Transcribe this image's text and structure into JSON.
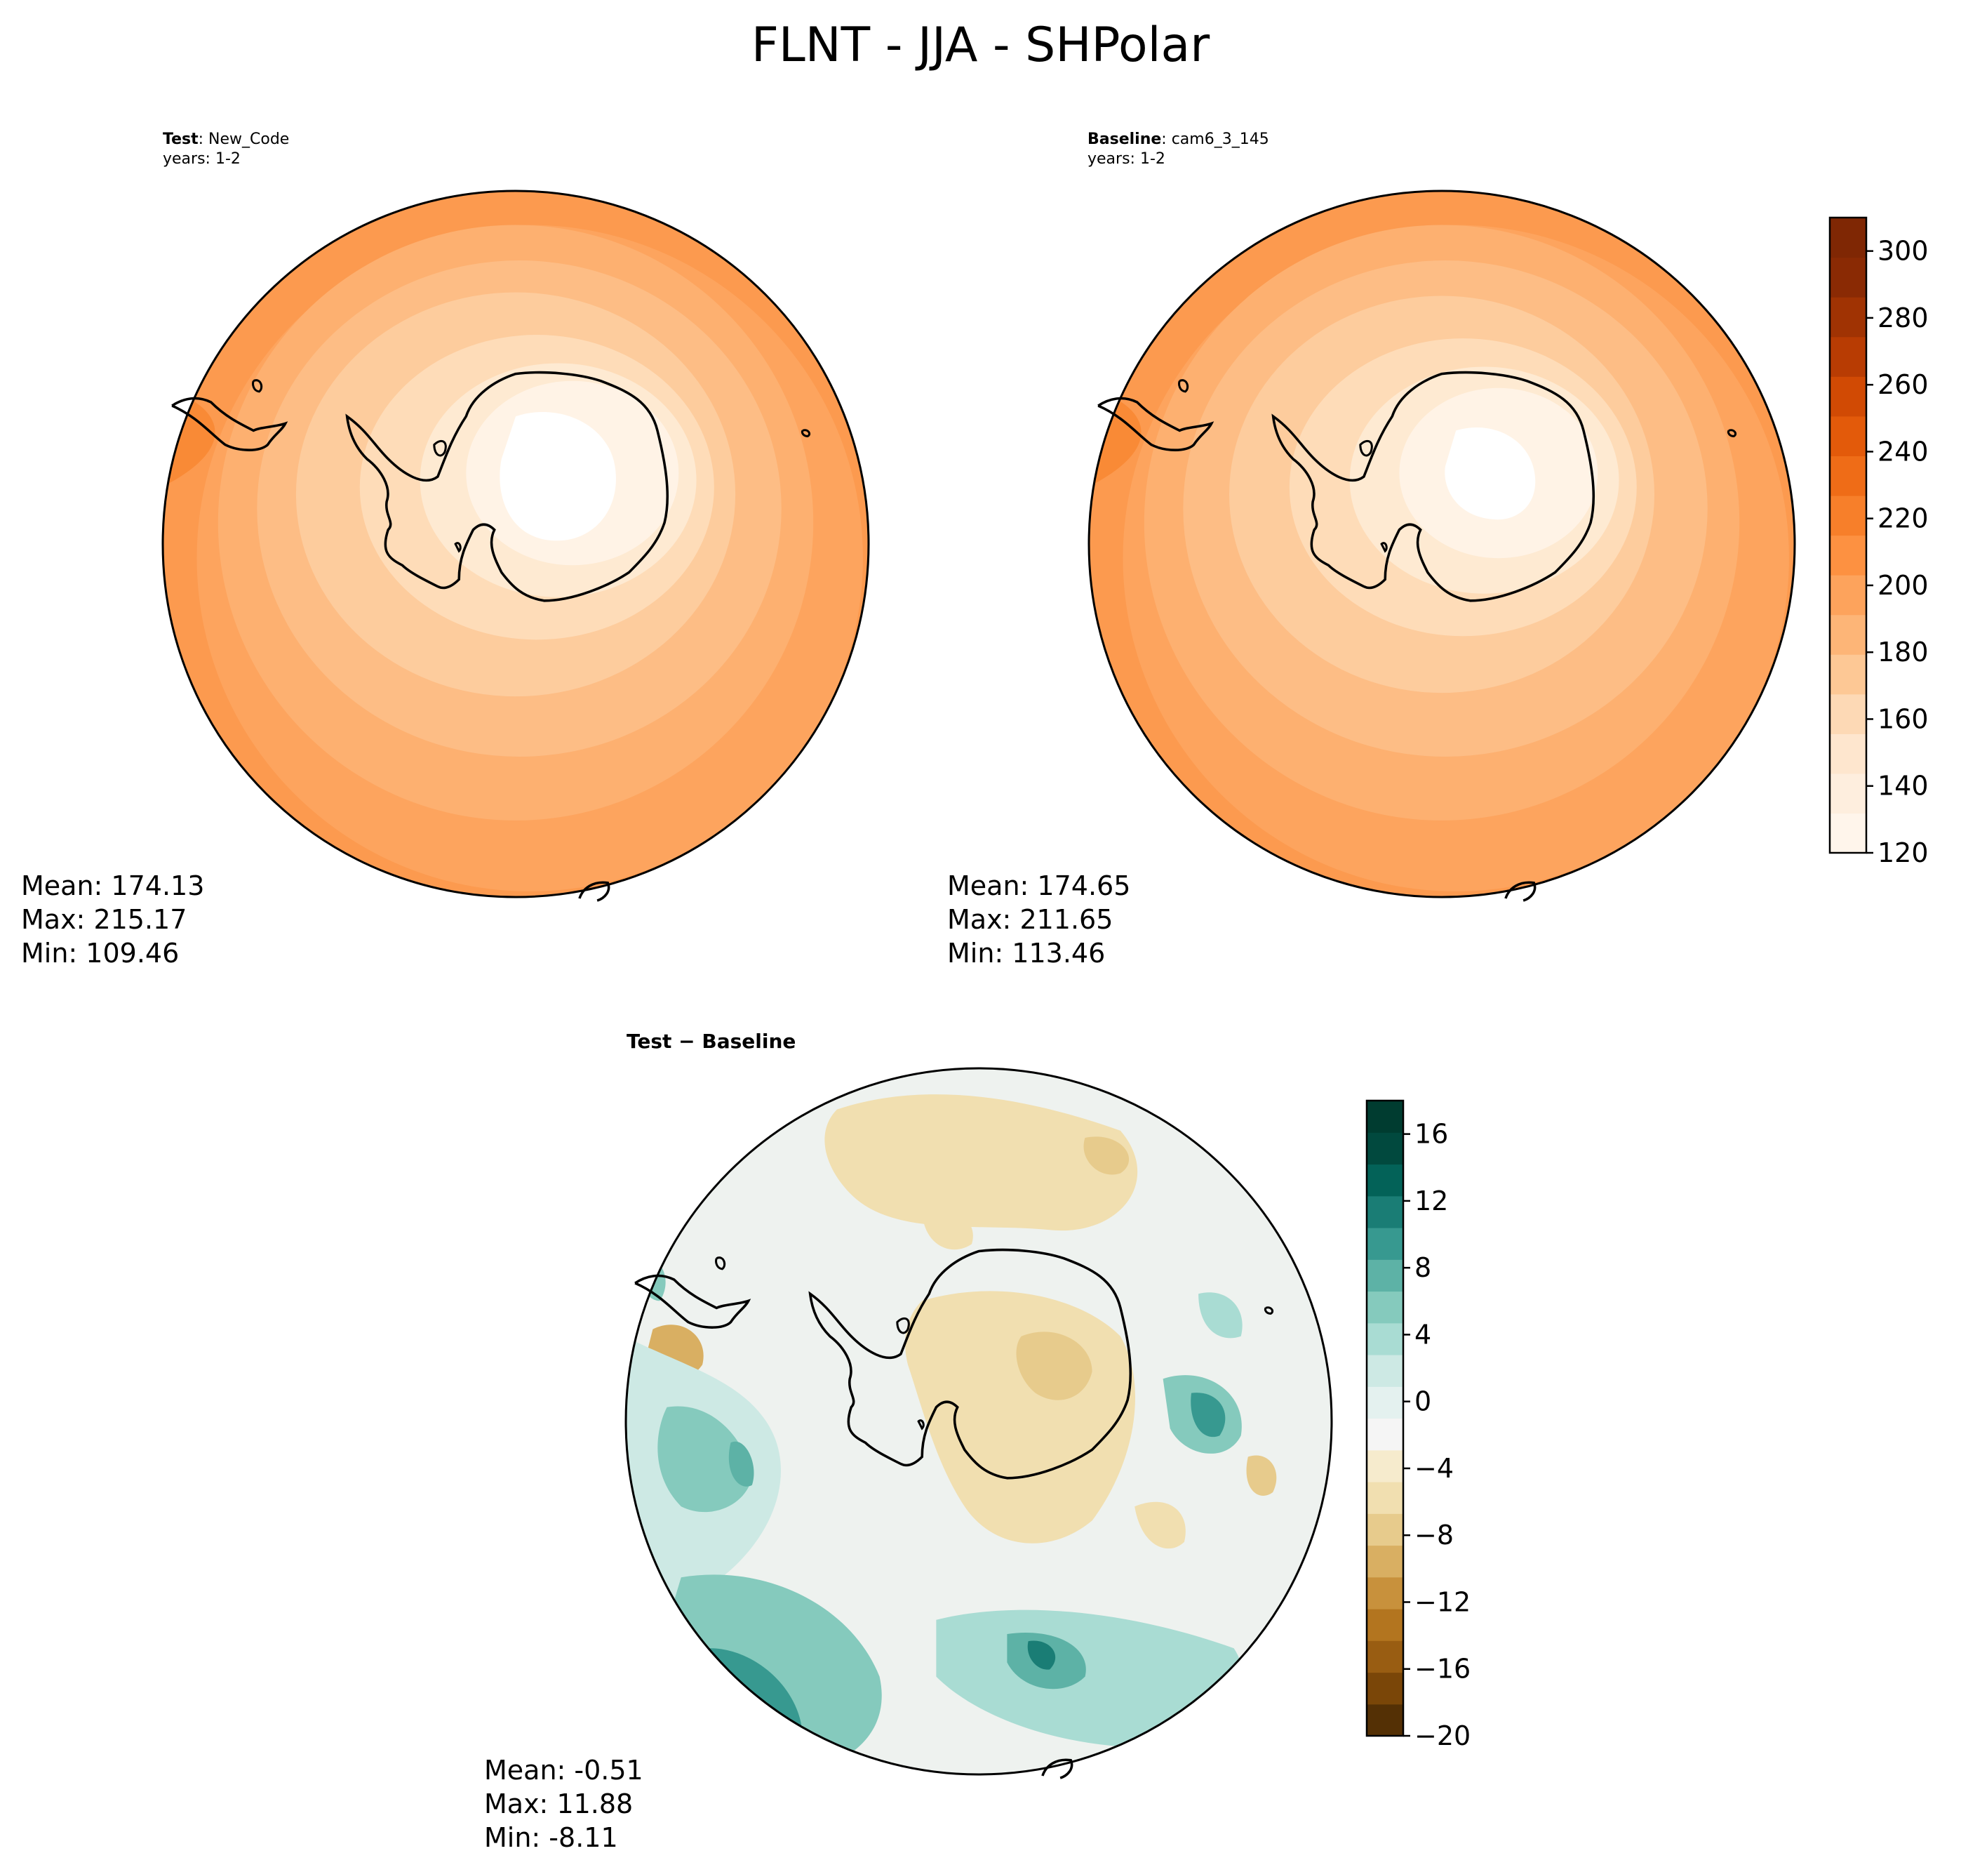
{
  "figure": {
    "title": "FLNT - JJA - SHPolar"
  },
  "panels": {
    "test": {
      "label_bold": "Test",
      "label_rest": ": New_Code",
      "years": "years: 1-2",
      "mean": "Mean: 174.13",
      "max": "Max: 215.17",
      "min": "Min: 109.46"
    },
    "baseline": {
      "label_bold": "Baseline",
      "label_rest": ": cam6_3_145",
      "years": "years: 1-2",
      "mean": "Mean: 174.65",
      "max": "Max: 211.65",
      "min": "Min: 113.46"
    },
    "diff": {
      "label": "Test − Baseline",
      "mean": "Mean: -0.51",
      "max": "Max: 11.88",
      "min": "Min: -8.11"
    }
  },
  "colors": {
    "main_cmap": [
      "#fff5eb",
      "#feeede",
      "#fee6ce",
      "#fdd9b5",
      "#fdc895",
      "#fdb577",
      "#fda35c",
      "#fd9141",
      "#f77f2a",
      "#ef6c17",
      "#e35a0a",
      "#d14a04",
      "#b83c03",
      "#a03303",
      "#8a2a04",
      "#7f2704"
    ],
    "diff_cmap_neg": [
      "#543005",
      "#7a4608",
      "#995d12",
      "#b3751f",
      "#c8913c",
      "#d9af62",
      "#e7cb8c",
      "#f1dfb0",
      "#f6ebcd"
    ],
    "diff_cmap_pos": [
      "#f5f5f5",
      "#e4f1ef",
      "#cde9e4",
      "#a9dcd3",
      "#85cabd",
      "#5db2a6",
      "#379990",
      "#1a7d75",
      "#036258",
      "#01493e",
      "#003c30"
    ]
  },
  "chart_data": [
    {
      "type": "heatmap",
      "name": "test-map",
      "projection": "south-polar-stereographic",
      "variable": "FLNT",
      "stats": {
        "mean": 174.13,
        "max": 215.17,
        "min": 109.46
      },
      "colorbar": {
        "vmin": 120,
        "vmax": 310,
        "ticks": [
          120,
          140,
          160,
          180,
          200,
          220,
          240,
          260,
          280,
          300
        ]
      }
    },
    {
      "type": "heatmap",
      "name": "baseline-map",
      "projection": "south-polar-stereographic",
      "variable": "FLNT",
      "stats": {
        "mean": 174.65,
        "max": 211.65,
        "min": 113.46
      },
      "colorbar": {
        "vmin": 120,
        "vmax": 310,
        "ticks": [
          120,
          140,
          160,
          180,
          200,
          220,
          240,
          260,
          280,
          300
        ],
        "tick_labels": [
          "120",
          "140",
          "160",
          "180",
          "200",
          "220",
          "240",
          "260",
          "280",
          "300"
        ]
      }
    },
    {
      "type": "heatmap",
      "name": "difference-map",
      "projection": "south-polar-stereographic",
      "stats": {
        "mean": -0.51,
        "max": 11.88,
        "min": -8.11
      },
      "colorbar": {
        "vmin": -20,
        "vmax": 18,
        "ticks": [
          -20,
          -16,
          -12,
          -8,
          -4,
          0,
          4,
          8,
          12,
          16
        ],
        "tick_labels": [
          "−20",
          "−16",
          "−12",
          "−8",
          "−4",
          "0",
          "4",
          "8",
          "12",
          "16"
        ]
      }
    }
  ]
}
